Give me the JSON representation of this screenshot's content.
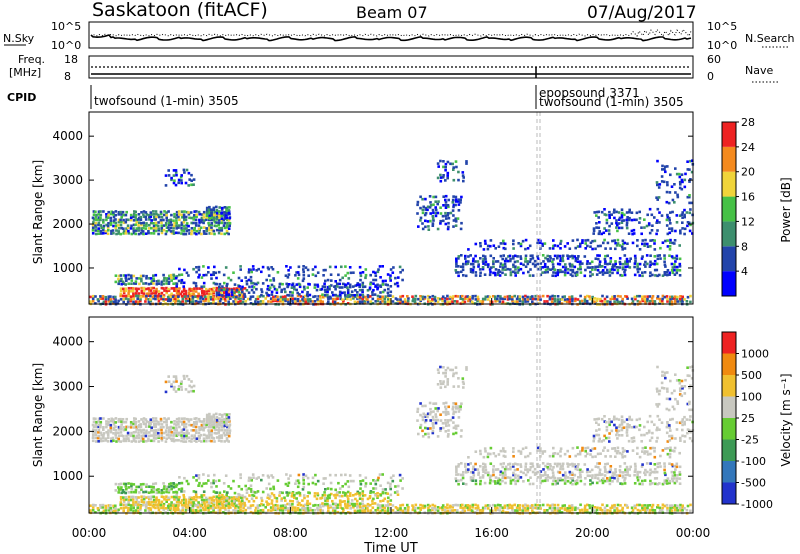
{
  "header": {
    "station": "Saskatoon (fitACF)",
    "beam": "Beam 07",
    "date": "07/Aug/2017"
  },
  "noise_panel": {
    "left_label": "N.Sky",
    "right_label": "N.Search",
    "left_ticks": [
      "10^5",
      "10^0"
    ],
    "right_ticks": [
      "10^5",
      "10^0"
    ]
  },
  "freq_panel": {
    "label_line1": "Freq.",
    "label_line2": "[MHz]",
    "left_ticks": [
      "18",
      "8"
    ],
    "right_label": "Nave",
    "right_ticks": [
      "60",
      "0"
    ]
  },
  "cpid_panel": {
    "label": "CPID",
    "entries": [
      {
        "text": "twofsound (1-min) 3505",
        "start_hour": 0
      },
      {
        "text": "epopsound 3371",
        "start_hour": 17.85
      },
      {
        "text": "twofsound (1-min) 3505",
        "start_hour": 17.85
      }
    ]
  },
  "chart_data": [
    {
      "type": "heatmap",
      "name": "power",
      "ylabel": "Slant Range [km]",
      "xlabel": "",
      "xlim_hours": [
        0,
        24
      ],
      "ylim_km": [
        180,
        4550
      ],
      "yticks": [
        "1000",
        "2000",
        "3000",
        "4000"
      ],
      "colorbar": {
        "label": "Power [dB]",
        "ticks": [
          "4",
          "8",
          "12",
          "16",
          "20",
          "24",
          "28"
        ],
        "bands": [
          "#0000ff",
          "#2244aa",
          "#3d8f6e",
          "#46c146",
          "#f0d43a",
          "#f48a1e",
          "#ee2222"
        ]
      }
    },
    {
      "type": "heatmap",
      "name": "velocity",
      "ylabel": "Slant Range [km]",
      "xlabel": "Time UT",
      "xlim_hours": [
        0,
        24
      ],
      "ylim_km": [
        180,
        4550
      ],
      "xticks": [
        "00:00",
        "04:00",
        "08:00",
        "12:00",
        "16:00",
        "20:00",
        "00:00"
      ],
      "yticks": [
        "1000",
        "2000",
        "3000",
        "4000"
      ],
      "colorbar": {
        "label": "Velocity [m s⁻¹]",
        "ticks": [
          "1000",
          "500",
          "100",
          "25",
          "-25",
          "-100",
          "-500",
          "-1000"
        ],
        "bands": [
          "#2233cc",
          "#3377bb",
          "#3d9a55",
          "#66cc33",
          "#c8c8c0",
          "#f0c030",
          "#f08a10",
          "#ee2222"
        ]
      }
    }
  ]
}
